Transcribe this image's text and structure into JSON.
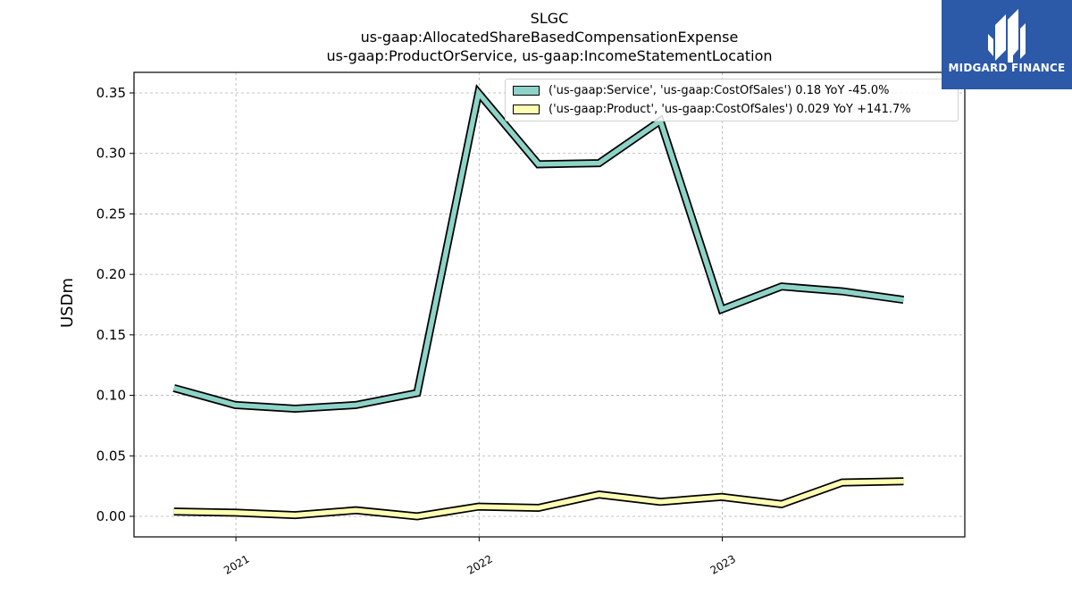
{
  "title": {
    "line1": "SLGC",
    "line2": "us-gaap:AllocatedShareBasedCompensationExpense",
    "line3": "us-gaap:ProductOrService, us-gaap:IncomeStatementLocation"
  },
  "logo": {
    "text": "MIDGARD FINANCE",
    "color": "#2c59a8"
  },
  "chart_data": {
    "type": "line",
    "ylabel": "USDm",
    "ylim": [
      -0.017,
      0.367
    ],
    "yticks": [
      0.0,
      0.05,
      0.1,
      0.15,
      0.2,
      0.25,
      0.3,
      0.35
    ],
    "ytick_labels": [
      "0.00",
      "0.05",
      "0.10",
      "0.15",
      "0.20",
      "0.25",
      "0.30",
      "0.35"
    ],
    "xlim": [
      "2020-08-01",
      "2023-12-31"
    ],
    "xticks": [
      "2021-01-01",
      "2022-01-01",
      "2023-01-01"
    ],
    "xtick_labels": [
      "2021",
      "2022",
      "2023"
    ],
    "grid": true,
    "legend_position": "top-right",
    "series": [
      {
        "name": "('us-gaap:Service', 'us-gaap:CostOfSales') 0.18 YoY -45.0%",
        "color": "#8dd3c7",
        "x": [
          "2020-09-30",
          "2020-12-31",
          "2021-03-31",
          "2021-06-30",
          "2021-09-30",
          "2021-12-31",
          "2022-03-31",
          "2022-06-30",
          "2022-09-30",
          "2022-12-31",
          "2023-03-31",
          "2023-06-30",
          "2023-09-30"
        ],
        "values": [
          0.106,
          0.092,
          0.089,
          0.092,
          0.102,
          0.35,
          0.291,
          0.292,
          0.327,
          0.171,
          0.19,
          0.186,
          0.179
        ]
      },
      {
        "name": "('us-gaap:Product', 'us-gaap:CostOfSales') 0.029 YoY +141.7%",
        "color": "#ffffb3",
        "x": [
          "2020-09-30",
          "2020-12-31",
          "2021-03-31",
          "2021-06-30",
          "2021-09-30",
          "2021-12-31",
          "2022-03-31",
          "2022-06-30",
          "2022-09-30",
          "2022-12-31",
          "2023-03-31",
          "2023-06-30",
          "2023-09-30"
        ],
        "values": [
          0.004,
          0.003,
          0.001,
          0.005,
          0.0,
          0.008,
          0.007,
          0.018,
          0.012,
          0.016,
          0.01,
          0.028,
          0.029
        ]
      }
    ]
  }
}
